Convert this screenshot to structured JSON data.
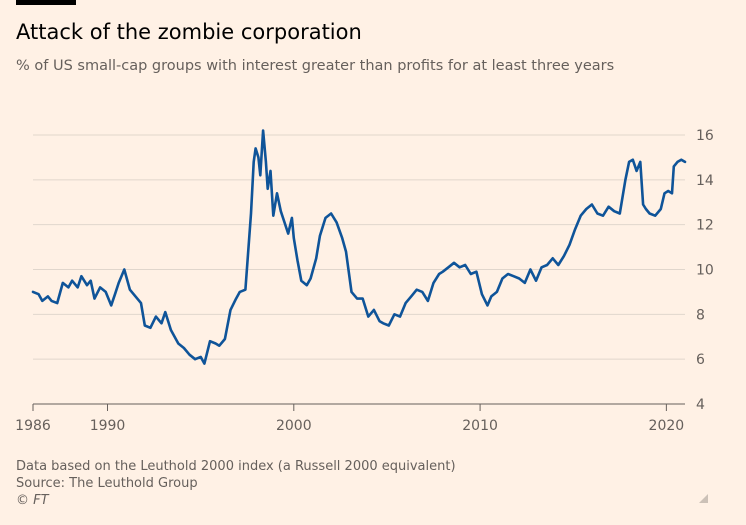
{
  "title": "Attack of the zombie corporation",
  "subtitle": "% of US small-cap groups with interest greater than profits for at least three years",
  "footer": {
    "note": "Data based on the Leuthold 2000 index (a Russell 2000 equivalent)",
    "source": "Source: The Leuthold Group",
    "credit": "© FT"
  },
  "colors": {
    "background": "#fff1e5",
    "line": "#0f5499",
    "grid": "#e0d6cc",
    "text": "#66605c"
  },
  "chart_data": {
    "type": "line",
    "title": "Attack of the zombie corporation",
    "xlabel": "",
    "ylabel": "",
    "xlim": [
      1986,
      2021
    ],
    "ylim": [
      4,
      16
    ],
    "x_ticks": [
      1986,
      1990,
      2000,
      2010,
      2020
    ],
    "y_ticks": [
      4,
      6,
      8,
      10,
      12,
      14,
      16
    ],
    "y_axis_position": "right",
    "grid": true,
    "legend": "none",
    "series": [
      {
        "x": [
          1986.0,
          1986.3,
          1986.5,
          1986.8,
          1987.0,
          1987.3,
          1987.6,
          1987.9,
          1988.1,
          1988.4,
          1988.6,
          1988.9,
          1989.1,
          1989.3,
          1989.6,
          1989.9,
          1990.2,
          1990.4,
          1990.6,
          1990.9,
          1991.2,
          1991.5,
          1991.8,
          1992.0,
          1992.3,
          1992.6,
          1992.9,
          1993.1,
          1993.4,
          1993.8,
          1994.1,
          1994.4,
          1994.7,
          1995.0,
          1995.2,
          1995.5,
          1995.8,
          1996.0,
          1996.3,
          1996.6,
          1996.9,
          1997.1,
          1997.4,
          1997.7,
          1997.85,
          1997.95,
          1998.1,
          1998.2,
          1998.35,
          1998.5,
          1998.6,
          1998.75,
          1998.9,
          1999.1,
          1999.3,
          1999.5,
          1999.7,
          1999.9,
          2000.0,
          2000.2,
          2000.4,
          2000.7,
          2000.9,
          2001.2,
          2001.4,
          2001.7,
          2002.0,
          2002.3,
          2002.6,
          2002.8,
          2003.1,
          2003.4,
          2003.7,
          2004.0,
          2004.3,
          2004.6,
          2004.8,
          2005.1,
          2005.4,
          2005.7,
          2006.0,
          2006.3,
          2006.6,
          2006.9,
          2007.2,
          2007.5,
          2007.8,
          2008.0,
          2008.3,
          2008.6,
          2008.9,
          2009.2,
          2009.5,
          2009.8,
          2010.1,
          2010.4,
          2010.6,
          2010.9,
          2011.2,
          2011.5,
          2011.8,
          2012.1,
          2012.4,
          2012.7,
          2013.0,
          2013.3,
          2013.6,
          2013.9,
          2014.2,
          2014.5,
          2014.8,
          2015.1,
          2015.4,
          2015.7,
          2016.0,
          2016.3,
          2016.6,
          2016.9,
          2017.2,
          2017.5,
          2017.8,
          2018.0,
          2018.2,
          2018.4,
          2018.6,
          2018.75,
          2018.9,
          2019.1,
          2019.4,
          2019.7,
          2019.9,
          2020.1,
          2020.3,
          2020.4,
          2020.6,
          2020.8,
          2021.0
        ],
        "values": [
          9.0,
          8.9,
          8.6,
          8.8,
          8.6,
          8.5,
          9.4,
          9.2,
          9.5,
          9.2,
          9.7,
          9.3,
          9.5,
          8.7,
          9.2,
          9.0,
          8.4,
          8.9,
          9.4,
          10.0,
          9.1,
          8.8,
          8.5,
          7.5,
          7.4,
          7.9,
          7.6,
          8.1,
          7.3,
          6.7,
          6.5,
          6.2,
          6.0,
          6.1,
          5.8,
          6.8,
          6.7,
          6.6,
          6.9,
          8.2,
          8.7,
          9.0,
          9.1,
          12.5,
          14.8,
          15.4,
          15.0,
          14.2,
          16.2,
          14.8,
          13.6,
          14.4,
          12.4,
          13.4,
          12.6,
          12.1,
          11.6,
          12.3,
          11.4,
          10.4,
          9.5,
          9.3,
          9.6,
          10.5,
          11.5,
          12.3,
          12.5,
          12.1,
          11.4,
          10.8,
          9.0,
          8.7,
          8.7,
          7.9,
          8.2,
          7.7,
          7.6,
          7.5,
          8.0,
          7.9,
          8.5,
          8.8,
          9.1,
          9.0,
          8.6,
          9.4,
          9.8,
          9.9,
          10.1,
          10.3,
          10.1,
          10.2,
          9.8,
          9.9,
          8.9,
          8.4,
          8.8,
          9.0,
          9.6,
          9.8,
          9.7,
          9.6,
          9.4,
          10.0,
          9.5,
          10.1,
          10.2,
          10.5,
          10.2,
          10.6,
          11.1,
          11.8,
          12.4,
          12.7,
          12.9,
          12.5,
          12.4,
          12.8,
          12.6,
          12.5,
          14.0,
          14.8,
          14.9,
          14.4,
          14.8,
          12.9,
          12.7,
          12.5,
          12.4,
          12.7,
          13.4,
          13.5,
          13.4,
          14.6,
          14.8,
          14.9,
          14.8
        ]
      }
    ]
  }
}
